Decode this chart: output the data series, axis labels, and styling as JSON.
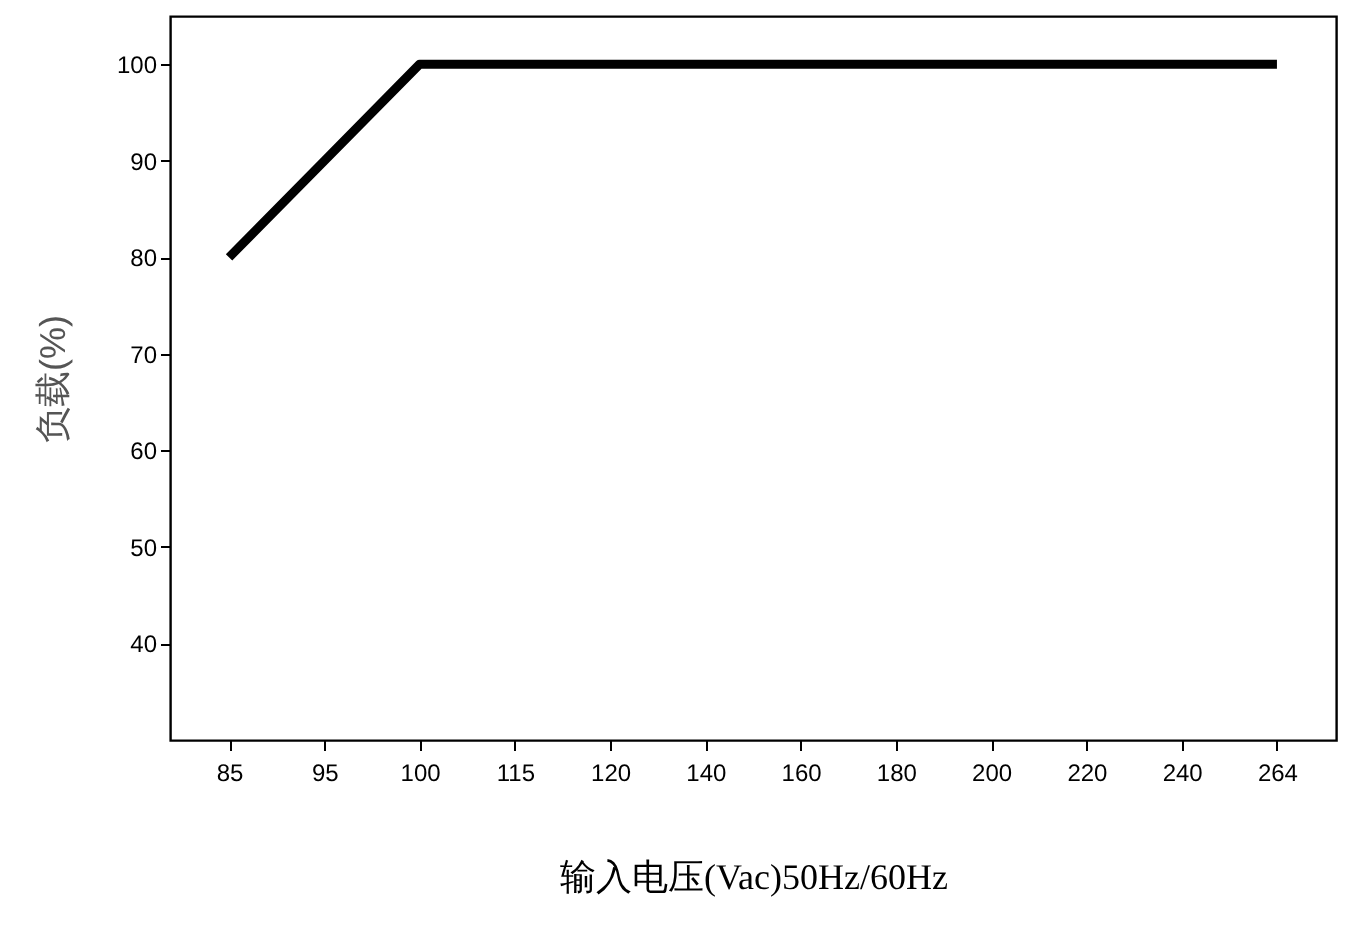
{
  "chart_data": {
    "type": "line",
    "xlabel": "输入电压(Vac)50Hz/60Hz",
    "ylabel": "负载(%)",
    "categories": [
      "85",
      "95",
      "100",
      "115",
      "120",
      "140",
      "160",
      "180",
      "200",
      "220",
      "240",
      "264"
    ],
    "values": [
      80,
      90,
      100,
      100,
      100,
      100,
      100,
      100,
      100,
      100,
      100,
      100
    ],
    "color": "#000000",
    "ylim": [
      30,
      105
    ],
    "yticks": [
      40,
      50,
      60,
      70,
      80,
      90,
      100
    ],
    "line_style": "solid"
  }
}
